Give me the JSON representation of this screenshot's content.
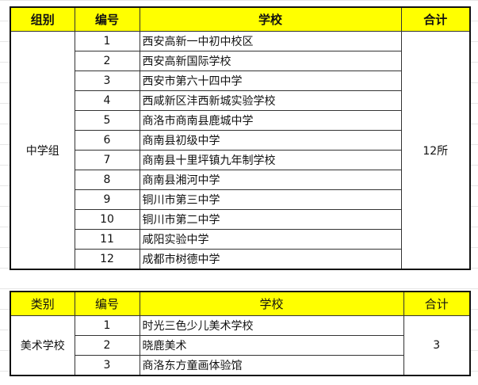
{
  "table1": {
    "headers": [
      "组别",
      "编号",
      "学校",
      "合计"
    ],
    "group": "中学组",
    "total": "12所",
    "rows": [
      {
        "no": "1",
        "school": "西安高新一中初中校区"
      },
      {
        "no": "2",
        "school": "西安高新国际学校"
      },
      {
        "no": "3",
        "school": "西安市第六十四中学"
      },
      {
        "no": "4",
        "school": "西咸新区沣西新城实验学校"
      },
      {
        "no": "5",
        "school": "商洛市商南县鹿城中学"
      },
      {
        "no": "6",
        "school": "商南县初级中学"
      },
      {
        "no": "7",
        "school": "商南县十里坪镇九年制学校"
      },
      {
        "no": "8",
        "school": "商南县湘河中学"
      },
      {
        "no": "9",
        "school": "铜川市第三中学"
      },
      {
        "no": "10",
        "school": "铜川市第二中学"
      },
      {
        "no": "11",
        "school": "咸阳实验中学"
      },
      {
        "no": "12",
        "school": "成都市树德中学"
      }
    ]
  },
  "table2": {
    "headers": [
      "类别",
      "编号",
      "学校",
      "合计"
    ],
    "group": "美术学校",
    "total": "3",
    "rows": [
      {
        "no": "1",
        "school": "时光三色少儿美术学校"
      },
      {
        "no": "2",
        "school": "晓鹿美术"
      },
      {
        "no": "3",
        "school": "商洛东方童画体验馆"
      }
    ]
  },
  "colors": {
    "header_bg": "#ffff00",
    "border": "#333333"
  }
}
